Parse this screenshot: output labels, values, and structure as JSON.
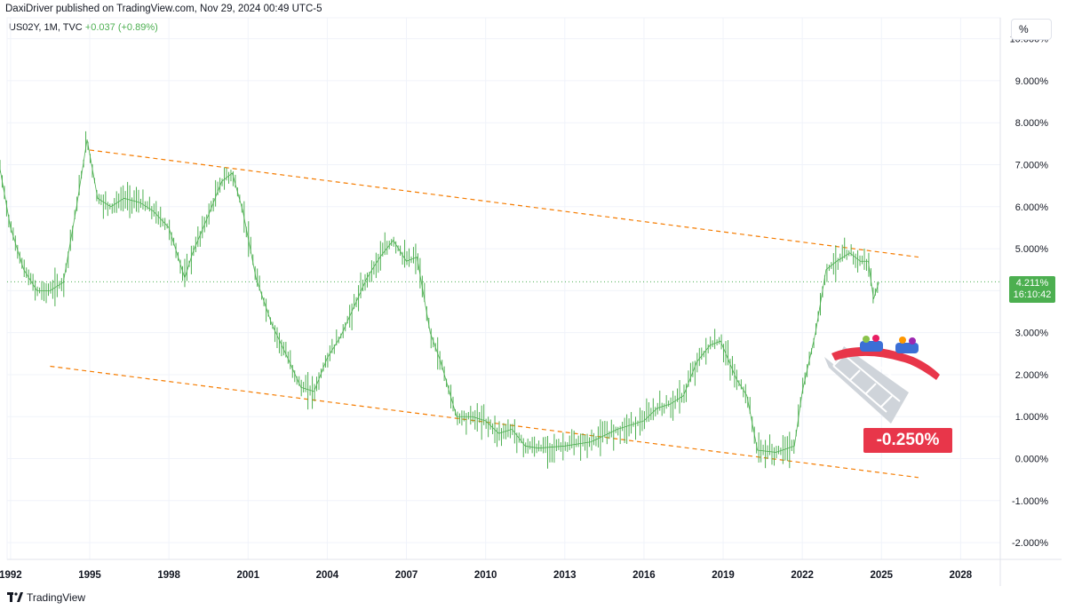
{
  "header": {
    "published": "DaxiDriver published on TradingView.com, Nov 29, 2024 00:49 UTC-5"
  },
  "legend": {
    "symbol": "US02Y, 1M, TVC",
    "change": "+0.037 (+0.89%)"
  },
  "price_scale": {
    "unit_label": "%"
  },
  "price_tag": {
    "value": "4.211%",
    "countdown": "16:10:42"
  },
  "callout": {
    "text": "-0.250%"
  },
  "footer": {
    "brand": "TradingView"
  },
  "colors": {
    "series": "#4caf50",
    "trendline": "#f57c00",
    "callout": "#e8364a",
    "grid": "#f0f3fa"
  },
  "chart_data": {
    "type": "line",
    "title": "",
    "xlabel": "",
    "ylabel": "",
    "x_ticks": [
      "1992",
      "1995",
      "1998",
      "2001",
      "2004",
      "2007",
      "2010",
      "2013",
      "2016",
      "2019",
      "2022",
      "2025",
      "2028"
    ],
    "y_ticks": [
      "10.000%",
      "9.000%",
      "8.000%",
      "7.000%",
      "6.000%",
      "5.000%",
      "4.000%",
      "3.000%",
      "2.000%",
      "1.000%",
      "0.000%",
      "-1.000%",
      "-2.000%"
    ],
    "xlim": [
      1991.6,
      2029.5
    ],
    "ylim": [
      -2.4,
      10.5
    ],
    "series": [
      {
        "x": [
          1991.6,
          1992.0,
          1992.5,
          1993.0,
          1993.5,
          1994.0,
          1994.5,
          1994.9,
          1995.3,
          1995.8,
          1996.3,
          1996.9,
          1997.4,
          1998.0,
          1998.6,
          1998.9,
          1999.5,
          2000.0,
          2000.4,
          2000.8,
          2001.3,
          2001.9,
          2002.5,
          2003.0,
          2003.5,
          2004.0,
          2004.5,
          2005.0,
          2005.5,
          2006.0,
          2006.5,
          2007.0,
          2007.4,
          2007.9,
          2008.3,
          2008.9,
          2009.5,
          2010.0,
          2010.5,
          2011.0,
          2011.5,
          2012.0,
          2013.0,
          2014.0,
          2015.0,
          2016.0,
          2016.5,
          2017.0,
          2017.5,
          2018.0,
          2018.5,
          2018.9,
          2019.5,
          2019.9,
          2020.3,
          2021.0,
          2021.7,
          2022.0,
          2022.5,
          2022.9,
          2023.3,
          2023.8,
          2024.2,
          2024.5,
          2024.7,
          2024.9
        ],
        "values": [
          6.9,
          5.5,
          4.5,
          4.0,
          4.0,
          4.2,
          6.0,
          7.6,
          6.2,
          6.0,
          6.2,
          6.1,
          5.9,
          5.5,
          4.3,
          4.9,
          5.8,
          6.6,
          6.8,
          5.9,
          4.3,
          3.2,
          2.4,
          1.7,
          1.6,
          2.4,
          2.9,
          3.6,
          4.3,
          4.8,
          5.2,
          4.7,
          4.8,
          3.0,
          2.3,
          1.0,
          1.0,
          0.9,
          0.6,
          0.7,
          0.3,
          0.25,
          0.3,
          0.4,
          0.7,
          0.9,
          1.2,
          1.3,
          1.5,
          2.3,
          2.7,
          2.8,
          1.9,
          1.5,
          0.2,
          0.15,
          0.3,
          1.6,
          3.0,
          4.5,
          4.7,
          4.9,
          4.7,
          4.7,
          3.8,
          4.2
        ]
      }
    ],
    "trendlines": [
      {
        "style": "dashed",
        "x": [
          1995.0,
          2026.4
        ],
        "values": [
          7.35,
          4.8
        ]
      },
      {
        "style": "dashed",
        "x": [
          1993.5,
          2026.4
        ],
        "values": [
          2.2,
          -0.45
        ]
      }
    ],
    "last_value": 4.211,
    "grid": true,
    "legend": "top-left"
  }
}
